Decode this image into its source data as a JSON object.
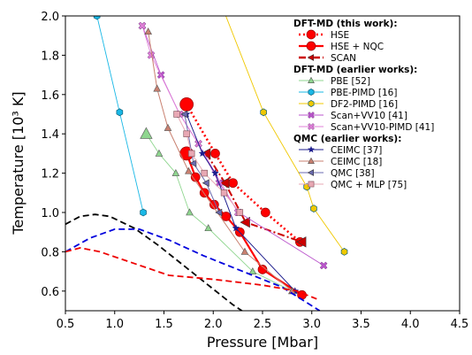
{
  "chart_data": {
    "type": "line",
    "xlabel": "Pressure [Mbar]",
    "ylabel": "Temperature [10³ K]",
    "xlim": [
      0.5,
      4.5
    ],
    "ylim": [
      0.5,
      2.0
    ],
    "xticks": [
      "0.5",
      "1.0",
      "1.5",
      "2.0",
      "2.5",
      "3.0",
      "3.5",
      "4.0",
      "4.5"
    ],
    "yticks": [
      "0.6",
      "0.8",
      "1.0",
      "1.2",
      "1.4",
      "1.6",
      "1.8",
      "2.0"
    ],
    "grid": false,
    "legend_position": "top-right",
    "legend_groups": [
      {
        "title": "DFT-MD (this work):",
        "entries": [
          {
            "label": "HSE",
            "color": "#ff0000",
            "marker": "circle",
            "line": "dotted"
          },
          {
            "label": "HSE + NQC",
            "color": "#ff0000",
            "marker": "circle",
            "line": "solid"
          },
          {
            "label": "SCAN",
            "color": "#cc0000",
            "marker": "triangle-left",
            "line": "dashdot"
          }
        ]
      },
      {
        "title": "DFT-MD (earlier works):",
        "entries": [
          {
            "label": "PBE [52]",
            "color": "#8fd68f",
            "marker": "triangle-up",
            "line": "solid"
          },
          {
            "label": "PBE-PIMD [16]",
            "color": "#1ab8e6",
            "marker": "hexagon",
            "line": "solid"
          },
          {
            "label": "DF2-PIMD [16]",
            "color": "#f0c800",
            "marker": "hexagon",
            "line": "solid"
          },
          {
            "label": "Scan+VV10 [41]",
            "color": "#bb55cc",
            "marker": "x",
            "line": "solid"
          },
          {
            "label": "Scan+VV10-PIMD [41]",
            "color": "#e080d8",
            "marker": "x",
            "line": "solid"
          }
        ]
      },
      {
        "title": "QMC (earlier works):",
        "entries": [
          {
            "label": "CEIMC [37]",
            "color": "#1c1c8c",
            "marker": "star",
            "line": "solid"
          },
          {
            "label": "CEIMC [18]",
            "color": "#c98070",
            "marker": "triangle-up",
            "line": "solid"
          },
          {
            "label": "QMC [38]",
            "color": "#6b6bb0",
            "marker": "triangle-left",
            "line": "solid"
          },
          {
            "label": "QMC + MLP [75]",
            "color": "#e8a8b4",
            "marker": "square",
            "line": "solid"
          }
        ]
      }
    ],
    "series": [
      {
        "name": "HSE",
        "color": "#ff0000",
        "marker": "circle",
        "dash": "dotted",
        "width": 2.6,
        "points": [
          [
            1.73,
            1.55
          ],
          [
            2.02,
            1.3
          ],
          [
            2.2,
            1.15
          ],
          [
            2.53,
            1.0
          ],
          [
            2.88,
            0.85
          ]
        ]
      },
      {
        "name": "HSE + NQC",
        "color": "#ff0000",
        "marker": "circle",
        "dash": "solid",
        "width": 2.2,
        "points": [
          [
            1.73,
            1.3
          ],
          [
            1.82,
            1.18
          ],
          [
            1.91,
            1.1
          ],
          [
            2.01,
            1.04
          ],
          [
            2.13,
            0.98
          ],
          [
            2.27,
            0.9
          ],
          [
            2.5,
            0.71
          ],
          [
            2.9,
            0.58
          ]
        ]
      },
      {
        "name": "SCAN",
        "color": "#cc0000",
        "marker": "triangle-left",
        "dash": "dashdot",
        "width": 2.0,
        "points": [
          [
            1.93,
            1.3
          ],
          [
            2.12,
            1.15
          ],
          [
            2.33,
            0.95
          ],
          [
            2.9,
            0.85
          ]
        ]
      },
      {
        "name": "PBE [52]",
        "color": "#8fd68f",
        "marker": "triangle-up",
        "dash": "solid",
        "width": 0.9,
        "points": [
          [
            1.32,
            1.4
          ],
          [
            1.45,
            1.3
          ],
          [
            1.62,
            1.2
          ],
          [
            1.76,
            1.0
          ],
          [
            1.95,
            0.92
          ],
          [
            2.4,
            0.7
          ],
          [
            2.8,
            0.6
          ]
        ]
      },
      {
        "name": "PBE-PIMD [16]",
        "color": "#1ab8e6",
        "marker": "hexagon",
        "dash": "solid",
        "width": 0.9,
        "points": [
          [
            0.82,
            2.0
          ],
          [
            1.05,
            1.51
          ],
          [
            1.29,
            1.0
          ]
        ]
      },
      {
        "name": "DF2-PIMD [16]",
        "color": "#f0c800",
        "marker": "hexagon",
        "dash": "solid",
        "width": 0.9,
        "points": [
          [
            2.05,
            2.1
          ],
          [
            2.51,
            1.51
          ],
          [
            2.95,
            1.13
          ],
          [
            3.02,
            1.02
          ],
          [
            3.33,
            0.8
          ]
        ]
      },
      {
        "name": "Scan+VV10 [41]",
        "color": "#bb55cc",
        "marker": "x",
        "dash": "solid",
        "width": 0.9,
        "points": [
          [
            1.28,
            1.95
          ],
          [
            1.47,
            1.7
          ],
          [
            1.66,
            1.5
          ],
          [
            1.85,
            1.35
          ],
          [
            2.06,
            1.15
          ],
          [
            2.26,
            1.0
          ],
          [
            3.12,
            0.73
          ]
        ]
      },
      {
        "name": "Scan+VV10-PIMD [41]",
        "color": "#e080d8",
        "marker": "x",
        "dash": "solid",
        "width": 0.9,
        "points": [
          [
            1.28,
            1.95
          ],
          [
            1.37,
            1.8
          ],
          [
            1.66,
            1.5
          ],
          [
            1.85,
            1.35
          ],
          [
            2.25,
            1.0
          ]
        ]
      },
      {
        "name": "CEIMC [37]",
        "color": "#1c1c8c",
        "marker": "star",
        "dash": "solid",
        "width": 1.0,
        "points": [
          [
            1.73,
            1.5
          ],
          [
            1.89,
            1.3
          ],
          [
            2.02,
            1.2
          ],
          [
            2.23,
            0.92
          ],
          [
            2.83,
            0.6
          ]
        ]
      },
      {
        "name": "CEIMC [18]",
        "color": "#c98070",
        "marker": "triangle-up",
        "dash": "solid",
        "width": 1.0,
        "points": [
          [
            1.34,
            1.92
          ],
          [
            1.43,
            1.63
          ],
          [
            1.54,
            1.43
          ],
          [
            1.75,
            1.21
          ],
          [
            2.32,
            0.8
          ],
          [
            2.8,
            0.6
          ]
        ]
      },
      {
        "name": "QMC [38]",
        "color": "#6b6bb0",
        "marker": "triangle-left",
        "dash": "solid",
        "width": 1.0,
        "points": [
          [
            1.71,
            1.5
          ],
          [
            1.8,
            1.25
          ],
          [
            1.93,
            1.15
          ],
          [
            2.06,
            1.0
          ]
        ]
      },
      {
        "name": "QMC + MLP [75]",
        "color": "#e8a8b4",
        "marker": "square",
        "dash": "solid",
        "width": 1.0,
        "points": [
          [
            1.63,
            1.5
          ],
          [
            1.73,
            1.4
          ],
          [
            1.78,
            1.3
          ],
          [
            1.91,
            1.2
          ],
          [
            2.11,
            1.1
          ],
          [
            2.27,
            1.0
          ]
        ]
      },
      {
        "name": "",
        "color": "#000000",
        "marker": "none",
        "dash": "dashed",
        "width": 1.8,
        "points": [
          [
            0.5,
            0.94
          ],
          [
            0.65,
            0.98
          ],
          [
            0.8,
            0.99
          ],
          [
            0.95,
            0.98
          ],
          [
            1.2,
            0.92
          ],
          [
            1.45,
            0.83
          ],
          [
            1.75,
            0.71
          ],
          [
            2.0,
            0.61
          ],
          [
            2.2,
            0.53
          ],
          [
            2.35,
            0.48
          ]
        ]
      },
      {
        "name": "",
        "color": "#0000dd",
        "marker": "none",
        "dash": "dashed",
        "width": 1.8,
        "points": [
          [
            0.5,
            0.8
          ],
          [
            0.75,
            0.87
          ],
          [
            1.0,
            0.915
          ],
          [
            1.25,
            0.915
          ],
          [
            1.55,
            0.86
          ],
          [
            1.9,
            0.78
          ],
          [
            2.3,
            0.7
          ],
          [
            2.7,
            0.62
          ],
          [
            3.08,
            0.5
          ]
        ]
      },
      {
        "name": "",
        "color": "#ee0000",
        "marker": "none",
        "dash": "dashed",
        "width": 1.8,
        "points": [
          [
            0.5,
            0.8
          ],
          [
            0.65,
            0.82
          ],
          [
            0.85,
            0.8
          ],
          [
            1.2,
            0.74
          ],
          [
            1.55,
            0.68
          ],
          [
            2.0,
            0.66
          ],
          [
            2.5,
            0.63
          ],
          [
            2.85,
            0.6
          ],
          [
            3.05,
            0.56
          ]
        ]
      }
    ]
  }
}
